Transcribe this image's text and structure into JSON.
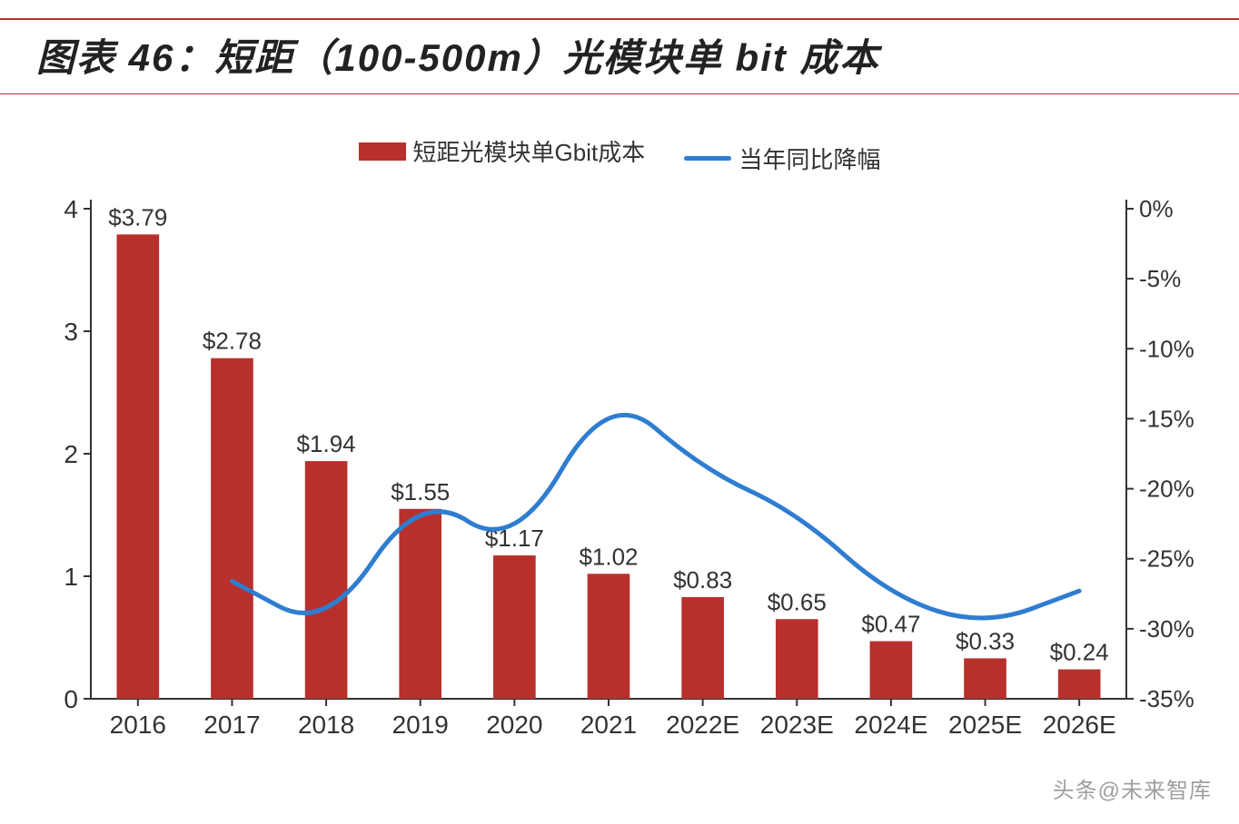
{
  "title": "图表 46：短距（100-500m）光模块单 bit 成本",
  "legend": {
    "bar_label": "短距光模块单Gbit成本",
    "line_label": "当年同比降幅"
  },
  "chart": {
    "type": "bar+line",
    "categories": [
      "2016",
      "2017",
      "2018",
      "2019",
      "2020",
      "2021",
      "2022E",
      "2023E",
      "2024E",
      "2025E",
      "2026E"
    ],
    "bar_values": [
      3.79,
      2.78,
      1.94,
      1.55,
      1.17,
      1.02,
      0.83,
      0.65,
      0.47,
      0.33,
      0.24
    ],
    "bar_value_labels": [
      "$3.79",
      "$2.78",
      "$1.94",
      "$1.55",
      "$1.17",
      "$1.02",
      "$0.83",
      "$0.65",
      "$0.47",
      "$0.33",
      "$0.24"
    ],
    "line_values_pct": [
      null,
      -26.6,
      -30.2,
      -20.1,
      -24.5,
      -12.8,
      -18.6,
      -21.7,
      -27.7,
      -29.8,
      -27.3
    ],
    "left_axis": {
      "min": 0,
      "max": 4,
      "ticks": [
        0,
        1,
        2,
        3,
        4
      ]
    },
    "right_axis": {
      "min": -35,
      "max": 0,
      "ticks": [
        0,
        -5,
        -10,
        -15,
        -20,
        -25,
        -30,
        -35
      ],
      "suffix": "%"
    },
    "colors": {
      "bar": "#b8302c",
      "line": "#2f7dd1",
      "axis": "#333333",
      "background": "#ffffff",
      "title_border": "#b8302c"
    },
    "bar_width_ratio": 0.45,
    "line_width": 5,
    "axis_line_width": 2,
    "title_fontsize": 42,
    "title_fontstyle": "italic",
    "label_fontsize": 26,
    "tick_fontsize": 28
  },
  "watermark": "头条@未来智库"
}
